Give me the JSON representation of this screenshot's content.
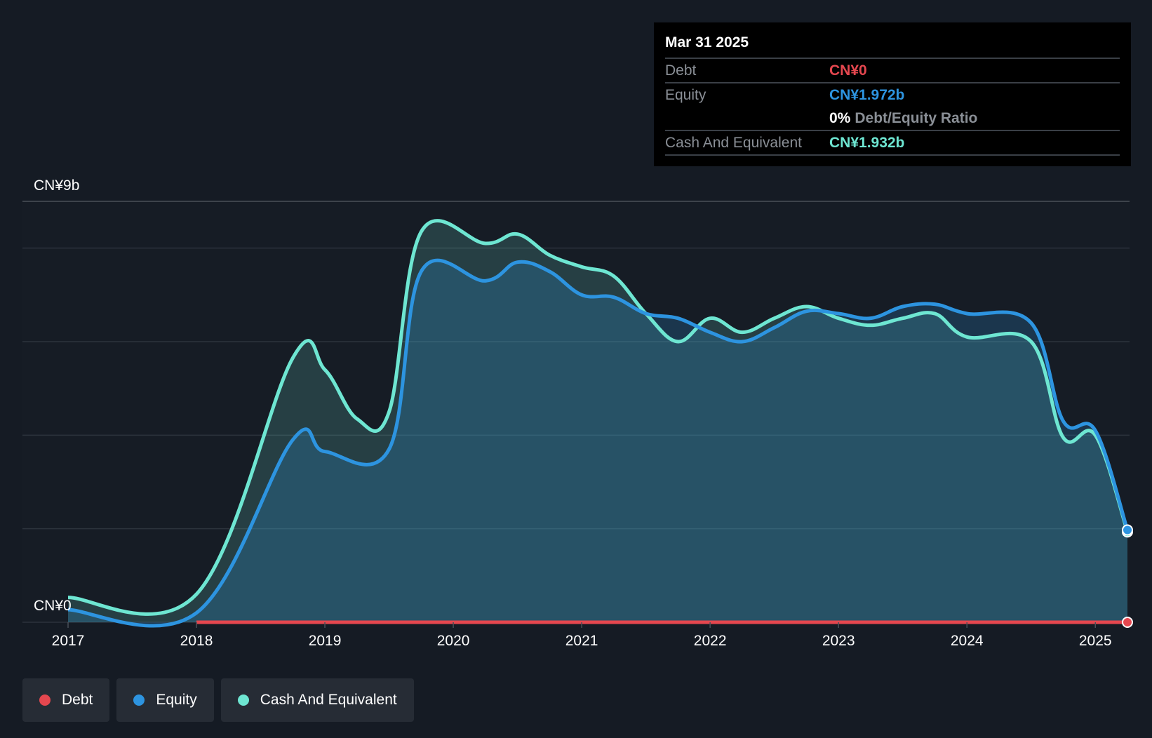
{
  "tooltip": {
    "date": "Mar 31 2025",
    "debt_label": "Debt",
    "debt_value": "CN¥0",
    "equity_label": "Equity",
    "equity_value": "CN¥1.972b",
    "ratio_value": "0%",
    "ratio_label": "Debt/Equity Ratio",
    "cash_label": "Cash And Equivalent",
    "cash_value": "CN¥1.932b"
  },
  "legend": [
    {
      "label": "Debt",
      "color": "#e5474f"
    },
    {
      "label": "Equity",
      "color": "#2d94e0"
    },
    {
      "label": "Cash And Equivalent",
      "color": "#6ee6d2"
    }
  ],
  "chart_data": {
    "type": "area",
    "ylabel_top": "CN¥9b",
    "ylabel_bottom": "CN¥0",
    "ylim": [
      0,
      9
    ],
    "x_ticks": [
      "2017",
      "2018",
      "2019",
      "2020",
      "2021",
      "2022",
      "2023",
      "2024",
      "2025"
    ],
    "x_range": [
      2017.0,
      2025.25
    ],
    "series": [
      {
        "name": "Debt",
        "color": "#e5474f",
        "points": [
          [
            2018.0,
            0
          ],
          [
            2025.25,
            0
          ]
        ]
      },
      {
        "name": "Equity",
        "color": "#2d94e0",
        "points": [
          [
            2017.0,
            0.27
          ],
          [
            2018.0,
            0.2
          ],
          [
            2018.75,
            3.9
          ],
          [
            2019.0,
            3.65
          ],
          [
            2019.5,
            3.7
          ],
          [
            2019.75,
            7.5
          ],
          [
            2020.25,
            7.3
          ],
          [
            2020.5,
            7.7
          ],
          [
            2020.75,
            7.5
          ],
          [
            2021.0,
            7.0
          ],
          [
            2021.25,
            6.95
          ],
          [
            2021.5,
            6.6
          ],
          [
            2021.75,
            6.5
          ],
          [
            2022.0,
            6.2
          ],
          [
            2022.25,
            6.0
          ],
          [
            2022.5,
            6.3
          ],
          [
            2022.75,
            6.65
          ],
          [
            2023.0,
            6.6
          ],
          [
            2023.25,
            6.5
          ],
          [
            2023.5,
            6.75
          ],
          [
            2023.75,
            6.8
          ],
          [
            2024.0,
            6.6
          ],
          [
            2024.5,
            6.4
          ],
          [
            2024.75,
            4.3
          ],
          [
            2025.0,
            4.1
          ],
          [
            2025.25,
            1.972
          ]
        ]
      },
      {
        "name": "Cash And Equivalent",
        "color": "#6ee6d2",
        "points": [
          [
            2017.0,
            0.53
          ],
          [
            2018.0,
            0.6
          ],
          [
            2018.75,
            5.65
          ],
          [
            2019.0,
            5.4
          ],
          [
            2019.25,
            4.35
          ],
          [
            2019.5,
            4.5
          ],
          [
            2019.75,
            8.35
          ],
          [
            2020.25,
            8.1
          ],
          [
            2020.5,
            8.3
          ],
          [
            2020.75,
            7.85
          ],
          [
            2021.0,
            7.6
          ],
          [
            2021.25,
            7.4
          ],
          [
            2021.5,
            6.6
          ],
          [
            2021.75,
            6.0
          ],
          [
            2022.0,
            6.5
          ],
          [
            2022.25,
            6.2
          ],
          [
            2022.5,
            6.5
          ],
          [
            2022.75,
            6.75
          ],
          [
            2023.0,
            6.5
          ],
          [
            2023.25,
            6.35
          ],
          [
            2023.5,
            6.5
          ],
          [
            2023.75,
            6.6
          ],
          [
            2024.0,
            6.1
          ],
          [
            2024.5,
            6.0
          ],
          [
            2024.75,
            3.95
          ],
          [
            2025.0,
            4.0
          ],
          [
            2025.25,
            1.932
          ]
        ]
      }
    ]
  }
}
